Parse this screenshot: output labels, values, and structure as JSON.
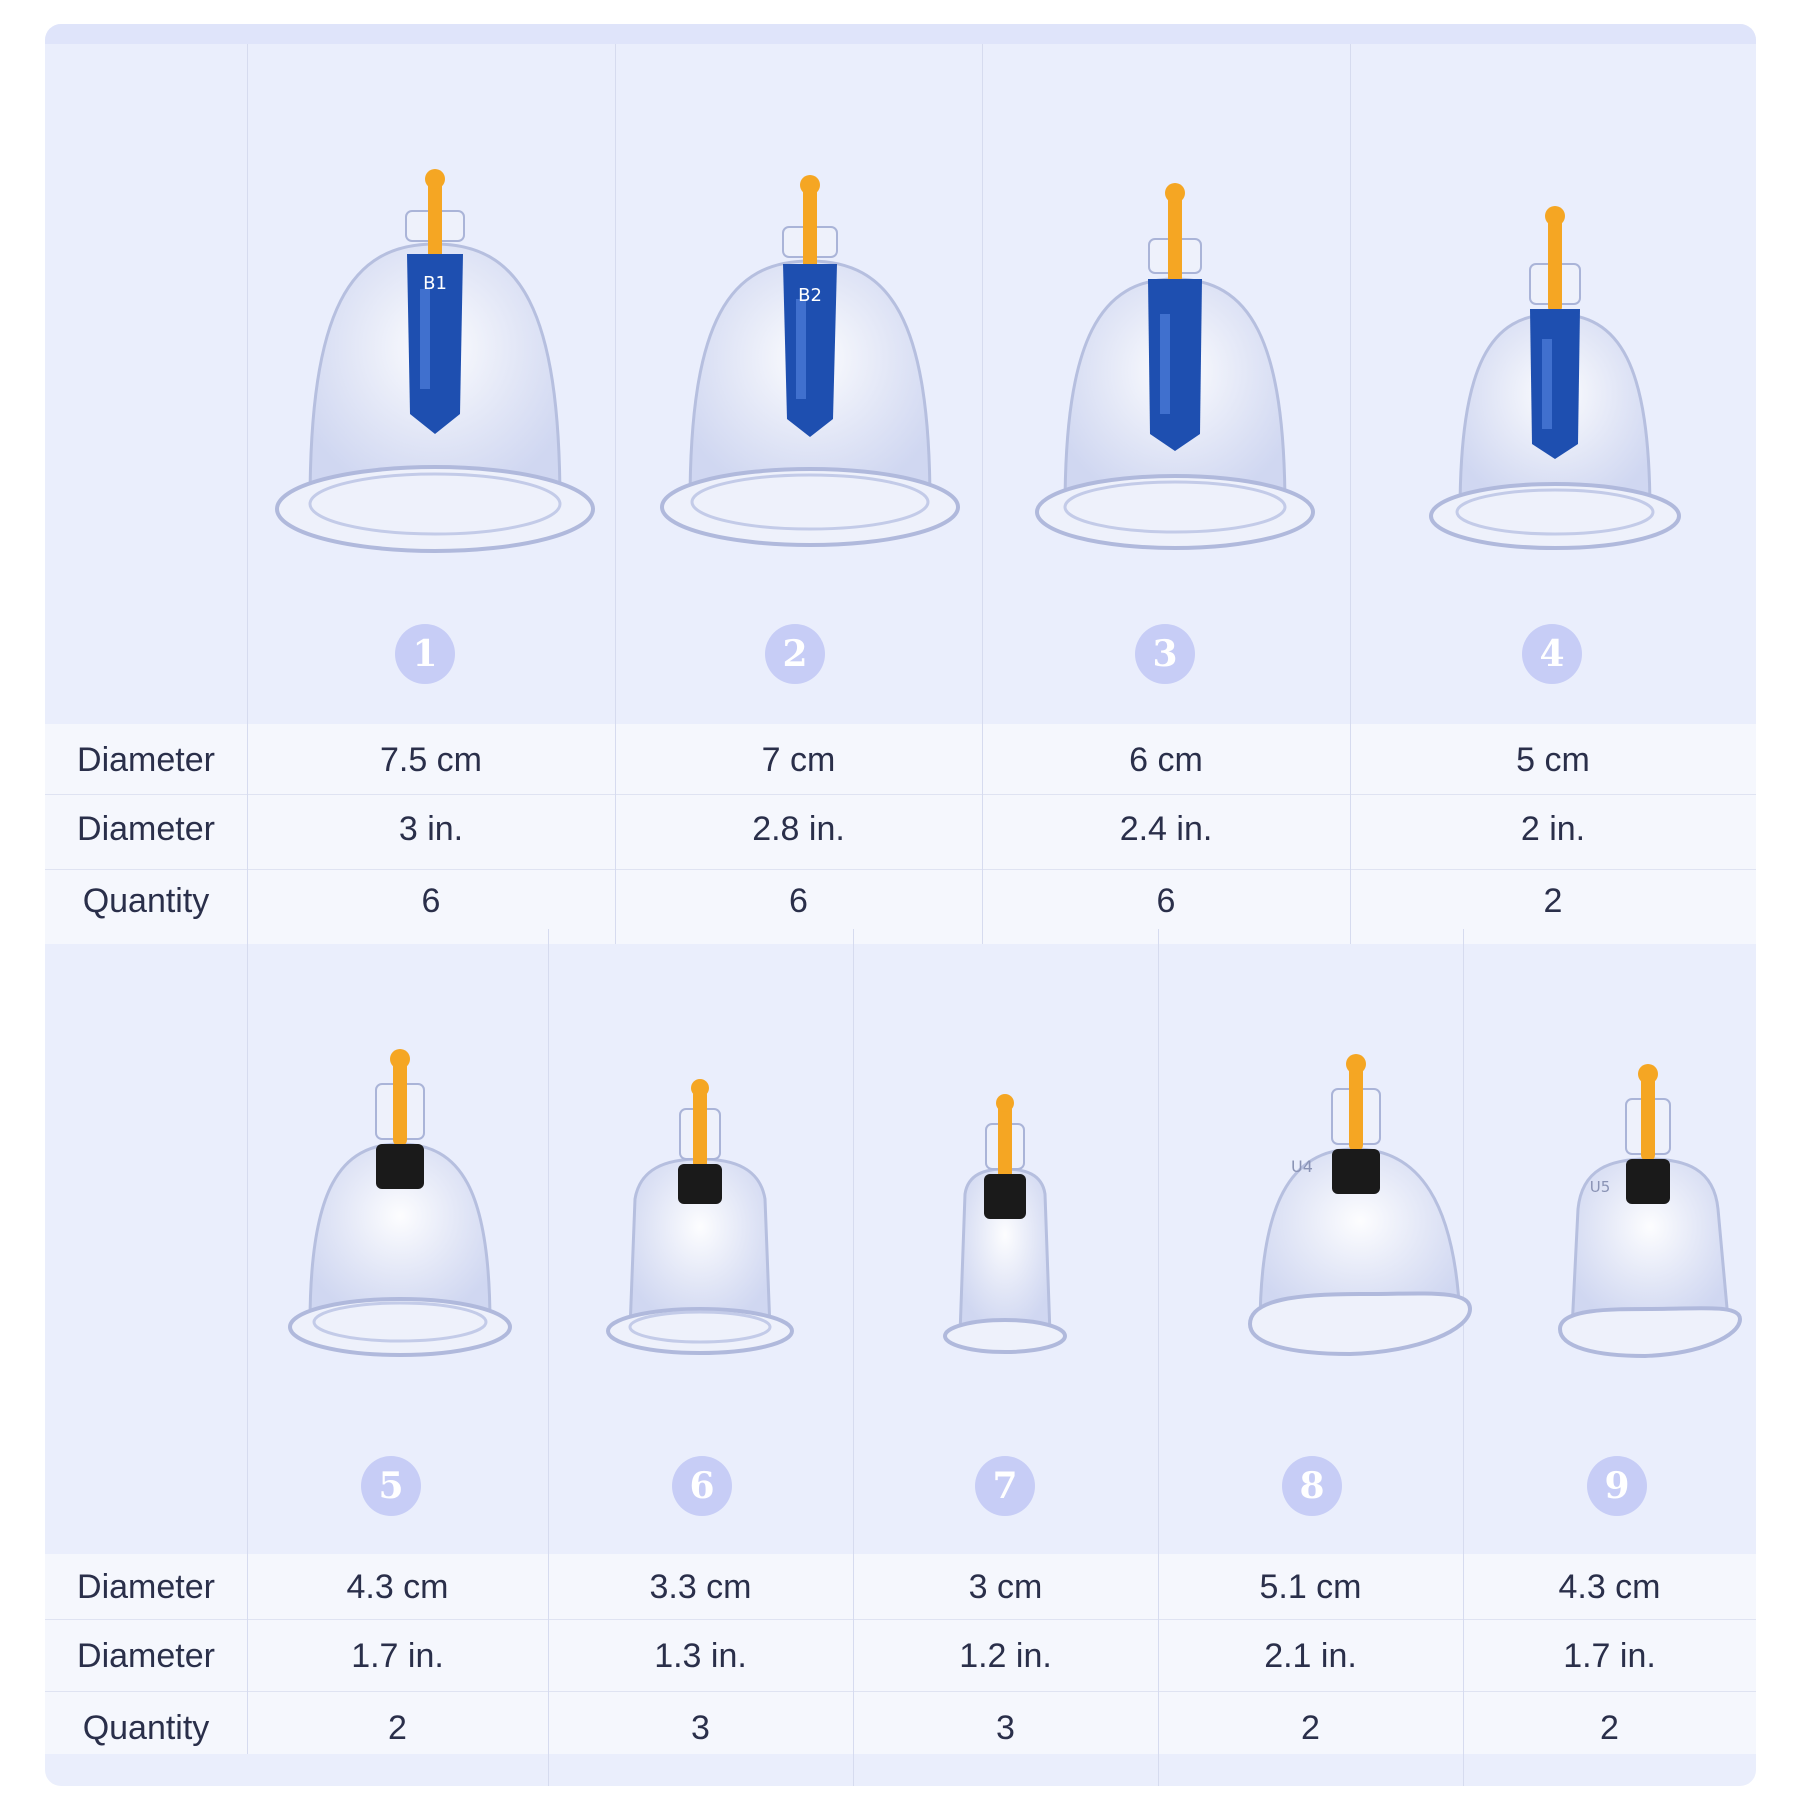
{
  "specs_top": {
    "row_labels": [
      "Diameter",
      "Diameter",
      "Quantity"
    ],
    "cups": [
      {
        "number": "1",
        "diameter_cm": "7.5 cm",
        "diameter_in": "3 in.",
        "quantity": "6",
        "cap_text": "B1",
        "valve": "blue"
      },
      {
        "number": "2",
        "diameter_cm": "7 cm",
        "diameter_in": "2.8 in.",
        "quantity": "6",
        "cap_text": "B2",
        "valve": "blue"
      },
      {
        "number": "3",
        "diameter_cm": "6 cm",
        "diameter_in": "2.4 in.",
        "quantity": "6",
        "cap_text": "",
        "valve": "blue"
      },
      {
        "number": "4",
        "diameter_cm": "5 cm",
        "diameter_in": "2 in.",
        "quantity": "2",
        "cap_text": "",
        "valve": "blue"
      }
    ]
  },
  "specs_bottom": {
    "row_labels": [
      "Diameter",
      "Diameter",
      "Quantity"
    ],
    "cups": [
      {
        "number": "5",
        "diameter_cm": "4.3 cm",
        "diameter_in": "1.7 in.",
        "quantity": "2",
        "cap_text": "",
        "valve": "black"
      },
      {
        "number": "6",
        "diameter_cm": "3.3 cm",
        "diameter_in": "1.3 in.",
        "quantity": "3",
        "cap_text": "",
        "valve": "black"
      },
      {
        "number": "7",
        "diameter_cm": "3 cm",
        "diameter_in": "1.2 in.",
        "quantity": "3",
        "cap_text": "",
        "valve": "black"
      },
      {
        "number": "8",
        "diameter_cm": "5.1 cm",
        "diameter_in": "2.1 in.",
        "quantity": "2",
        "cap_text": "U4",
        "valve": "black"
      },
      {
        "number": "9",
        "diameter_cm": "4.3 cm",
        "diameter_in": "1.7 in.",
        "quantity": "2",
        "cap_text": "U5",
        "valve": "black"
      }
    ]
  },
  "colors": {
    "panel_bg": "#eaeefc",
    "row_bg": "#f5f7fd",
    "badge_bg": "#c7cdf6",
    "valve_blue": "#1e4fb0",
    "valve_black": "#1a1a1a",
    "stem_orange": "#f5a623",
    "text": "#2a2f4a"
  }
}
